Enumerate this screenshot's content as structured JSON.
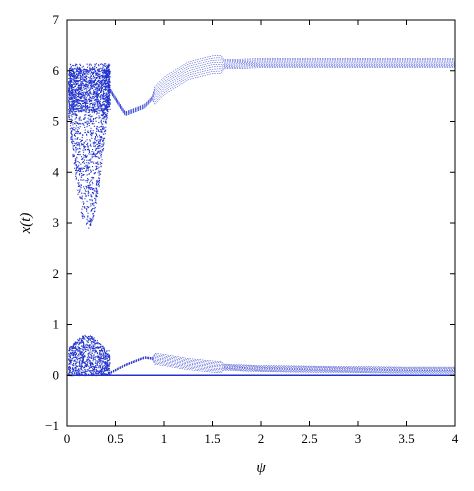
{
  "chart_data": {
    "type": "scatter",
    "title": "",
    "xlabel": "ψ",
    "ylabel": "x(t)",
    "xlim": [
      0,
      4
    ],
    "ylim": [
      -1,
      7
    ],
    "xticks": [
      "0",
      "0.5",
      "1",
      "1.5",
      "2",
      "2.5",
      "3",
      "3.5",
      "4"
    ],
    "yticks": [
      "−1",
      "0",
      "1",
      "2",
      "3",
      "4",
      "5",
      "6",
      "7"
    ],
    "grid": false,
    "legend": "none",
    "marker_color": "#2233cc",
    "series": [
      {
        "values": [
          {
            "region": "chaotic upper band",
            "x_range": [
              0.0,
              0.45
            ],
            "y_range": [
              2.9,
              6.2
            ]
          },
          {
            "region": "chaotic lower band",
            "x_range": [
              0.0,
              0.45
            ],
            "y_range": [
              0.0,
              0.8
            ]
          },
          {
            "region": "upper branches",
            "x": [
              0.45,
              0.6,
              0.8,
              1.0,
              1.25,
              1.5,
              2.0,
              2.5,
              3.0,
              3.5,
              4.0
            ],
            "y": [
              5.6,
              5.15,
              5.3,
              5.7,
              6.0,
              6.12,
              6.15,
              6.15,
              6.15,
              6.15,
              6.15
            ]
          },
          {
            "region": "lower branches",
            "x": [
              0.45,
              0.6,
              0.8,
              1.0,
              1.25,
              1.5,
              2.0,
              2.5,
              3.0,
              3.5,
              4.0
            ],
            "y": [
              0.05,
              0.2,
              0.35,
              0.3,
              0.22,
              0.17,
              0.13,
              0.12,
              0.11,
              0.1,
              0.1
            ]
          },
          {
            "region": "baseline",
            "x": [
              0.0,
              4.0
            ],
            "y": [
              0.0,
              0.0
            ]
          }
        ]
      }
    ]
  }
}
